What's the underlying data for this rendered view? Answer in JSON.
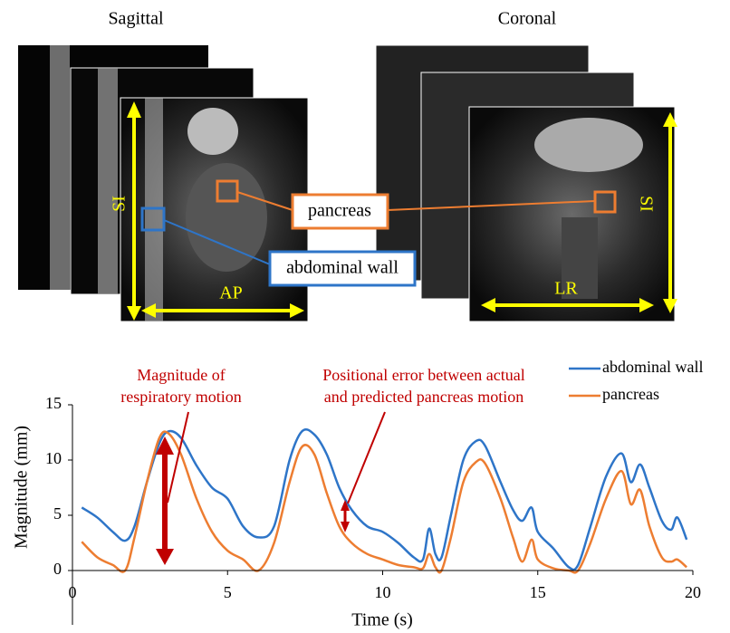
{
  "figure": {
    "sagittal": "Sagittal",
    "coronal": "Coronal",
    "si_left": "SI",
    "ap": "AP",
    "lr": "LR",
    "si_right": "SI",
    "pancreas_label": "pancreas",
    "abdominal_wall_label": "abdominal wall"
  },
  "chart_data": {
    "type": "line",
    "x_label": "Time (s)",
    "y_label": "Magnitude (mm)",
    "annotations": [
      "Magnitude of",
      "respiratory motion",
      "Positional error between actual",
      "and predicted pancreas motion"
    ],
    "x": [
      0.3,
      0.8,
      1.3,
      1.7,
      2.0,
      2.4,
      2.8,
      3.1,
      3.5,
      4.0,
      4.5,
      5.0,
      5.5,
      6.0,
      6.5,
      7.0,
      7.4,
      7.8,
      8.2,
      8.6,
      9.0,
      9.5,
      10.0,
      10.5,
      11.0,
      11.3,
      11.5,
      11.7,
      11.9,
      12.2,
      12.6,
      13.0,
      13.3,
      13.8,
      14.2,
      14.5,
      14.8,
      15.0,
      15.5,
      16.0,
      16.3,
      16.7,
      17.2,
      17.7,
      18.0,
      18.3,
      18.6,
      19.0,
      19.3,
      19.5,
      19.8
    ],
    "series": [
      {
        "name": "abdominal wall",
        "color": "#2e75c8",
        "values": [
          5.7,
          4.8,
          3.5,
          2.7,
          4,
          8,
          11.5,
          12.6,
          12,
          9.5,
          7.5,
          6.5,
          4,
          3,
          4,
          10,
          12.6,
          12.3,
          10.5,
          7.5,
          5.5,
          4,
          3.5,
          2.5,
          1.2,
          1,
          3.8,
          1.5,
          1.2,
          5,
          10,
          11.7,
          11.3,
          8,
          5.5,
          4.5,
          5.7,
          3.5,
          2,
          0.3,
          0.5,
          4,
          8.5,
          10.6,
          8,
          9.6,
          7.5,
          4.5,
          3.7,
          4.8,
          2.8
        ]
      },
      {
        "name": "pancreas",
        "color": "#ed7d31",
        "values": [
          2.6,
          1.2,
          0.5,
          0,
          3,
          8,
          12,
          12.4,
          10.5,
          6.5,
          3.5,
          1.8,
          1,
          0,
          2.5,
          8,
          11.2,
          10.5,
          7,
          4,
          2.5,
          1.5,
          1,
          0.5,
          0.3,
          0.2,
          1.5,
          0.3,
          0,
          3,
          8,
          9.8,
          9.7,
          6.5,
          3,
          0.8,
          2.8,
          1,
          0.2,
          0,
          0,
          2.5,
          6.5,
          9,
          6,
          7.3,
          4,
          1.2,
          0.8,
          1,
          0.3
        ]
      }
    ],
    "xlim": [
      0,
      20
    ],
    "xticks": [
      0,
      5,
      10,
      15,
      20
    ],
    "ylim": [
      0,
      15
    ],
    "yticks": [
      0,
      5,
      10,
      15
    ]
  }
}
